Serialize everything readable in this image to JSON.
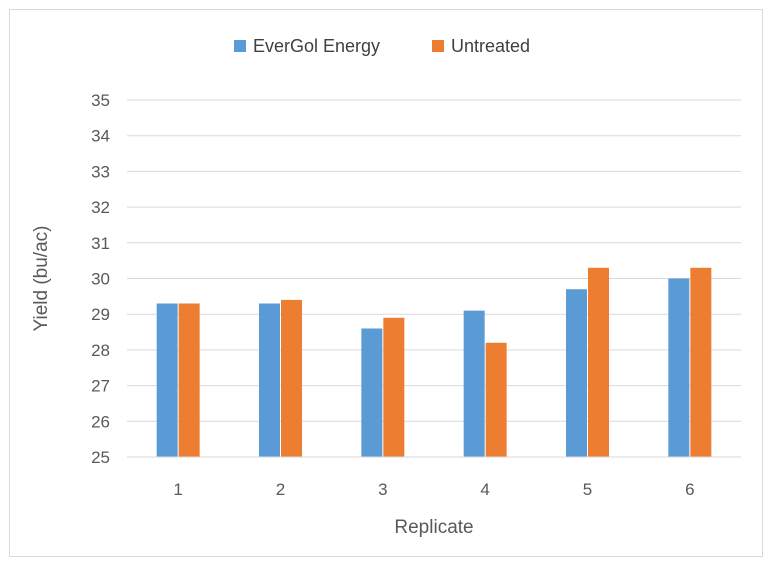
{
  "chart_data": {
    "type": "bar",
    "categories": [
      "1",
      "2",
      "3",
      "4",
      "5",
      "6"
    ],
    "series": [
      {
        "name": "EverGol Energy",
        "color": "#5b9bd5",
        "values": [
          29.3,
          29.3,
          28.6,
          29.1,
          29.7,
          30.0
        ]
      },
      {
        "name": "Untreated",
        "color": "#ed7d31",
        "values": [
          29.3,
          29.4,
          28.9,
          28.2,
          30.3,
          30.3
        ]
      }
    ],
    "xlabel": "Replicate",
    "ylabel": "Yield (bu/ac)",
    "ylim": [
      25,
      35
    ],
    "yticks": [
      "25",
      "26",
      "27",
      "28",
      "29",
      "30",
      "31",
      "32",
      "33",
      "34",
      "35"
    ],
    "grid": true,
    "legend_position": "top"
  }
}
